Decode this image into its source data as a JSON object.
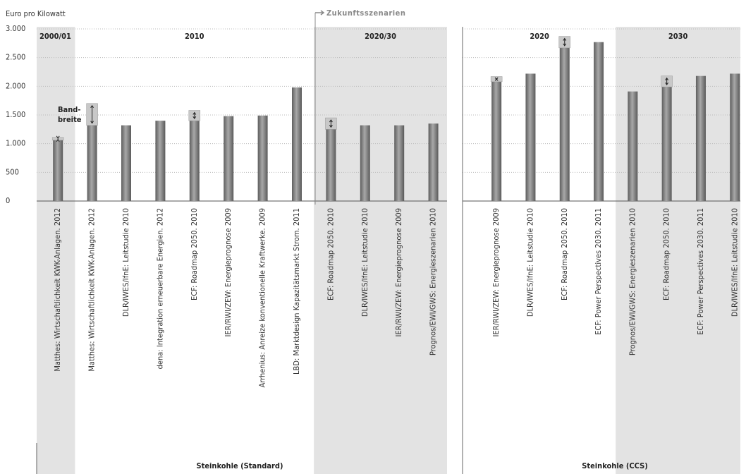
{
  "chart_data": {
    "type": "bar",
    "ylabel": "Euro pro Kilowatt",
    "ylim": [
      0,
      3000
    ],
    "yticks": [
      0,
      500,
      {
        "value": 1000,
        "label": "1.000"
      },
      {
        "value": 1500,
        "label": "1.500"
      },
      {
        "value": 2000,
        "label": "2.000"
      },
      {
        "value": 2500,
        "label": "2.500"
      },
      {
        "value": 3000,
        "label": "3.000"
      }
    ],
    "grid": true,
    "annotation": "Zukunftsszenarien",
    "band_note": [
      "Band-",
      "breite"
    ],
    "bar_color": "#7a7a7a",
    "band_color": "#c8c8c8",
    "shade_color": "#e3e3e3",
    "panels": [
      {
        "title": "Steinkohle (Standard)",
        "groups": [
          {
            "label": "2000/01",
            "shaded": true,
            "categories": [
              "Matthes: Wirtschaftlichkeit KWK-Anlagen. 2012"
            ],
            "values": [
              1060
            ],
            "band_max": [
              1110
            ]
          },
          {
            "label": "2010",
            "shaded": false,
            "categories": [
              "Matthes: Wirtschaftlichkeit KWK-Anlagen. 2012",
              "DLR/IWES/IfnE: Leitstudie 2010",
              "dena: Integration erneuerbare Energien. 2012",
              "ECF: Roadmap 2050. 2010",
              "IER/RWI/ZEW: Energieprognose 2009",
              "Arrhenius: Anreize konventionelle Kraftwerke. 2009",
              "LBD: Marktdesign Kapazitätsmarkt Strom. 2011"
            ],
            "values": [
              1320,
              1320,
              1400,
              1400,
              1480,
              1490,
              1980
            ],
            "band_max": [
              1700,
              null,
              null,
              1580,
              null,
              null,
              null
            ]
          },
          {
            "label": "2020/30",
            "shaded": true,
            "categories": [
              "ECF: Roadmap 2050. 2010",
              "DLR/IWES/IfnE: Leitstudie 2010",
              "IER/RWI/ZEW: Energieprognose 2009",
              "Prognos/EWI/GWS: Energieszenarien 2010"
            ],
            "values": [
              1250,
              1320,
              1320,
              1350
            ],
            "band_max": [
              1450,
              null,
              null,
              null
            ]
          }
        ]
      },
      {
        "title": "Steinkohle (CCS)",
        "groups": [
          {
            "label": "2020",
            "shaded": false,
            "categories": [
              "IER/RWI/ZEW: Energieprognose 2009",
              "DLR/IWES/IfnE: Leitstudie 2010",
              "ECF: Roadmap 2050. 2010",
              "ECF: Power Perspectives 2030. 2011"
            ],
            "values": [
              2080,
              2220,
              2670,
              2770
            ],
            "band_max": [
              2170,
              null,
              2870,
              null
            ]
          },
          {
            "label": "2030",
            "shaded": true,
            "categories": [
              "Prognos/EWI/GWS: Energieszenarien 2010",
              "ECF: Roadmap 2050. 2010",
              "ECF: Power Perspectives 2030. 2011",
              "DLR/IWES/IfnE: Leitstudie 2010"
            ],
            "values": [
              1910,
              1990,
              2180,
              2220
            ],
            "band_max": [
              null,
              2180,
              null,
              null
            ]
          }
        ]
      }
    ]
  }
}
